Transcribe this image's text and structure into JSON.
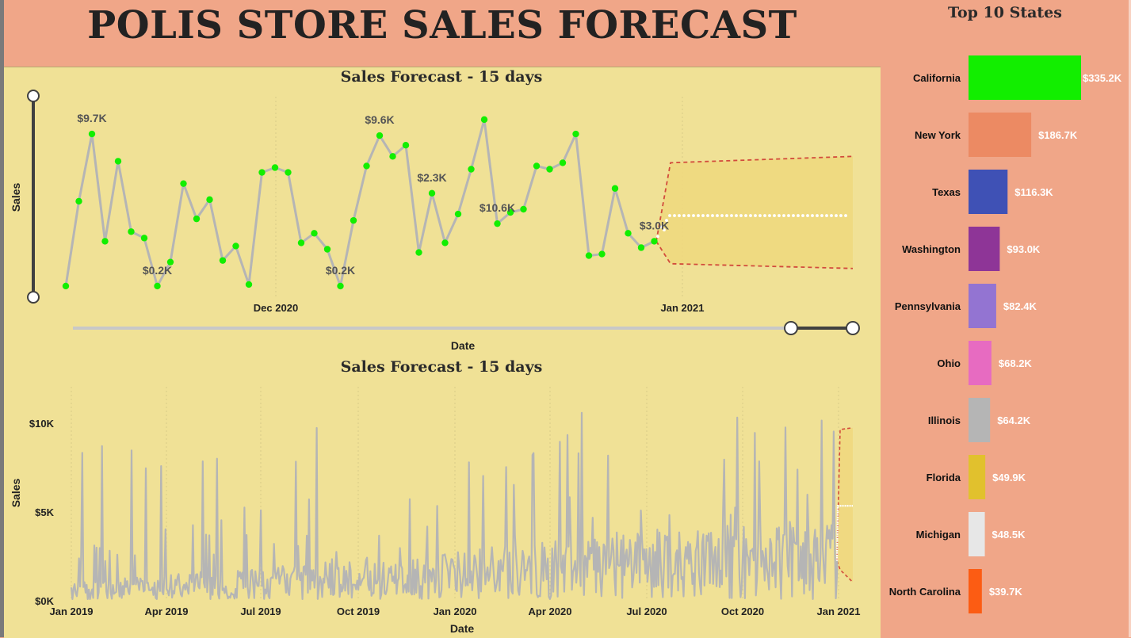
{
  "page": {
    "title": "POLIS STORE SALES FORECAST"
  },
  "colors": {
    "header_bg": "#f0a688",
    "chart_bg": "#f0e196",
    "line": "#b5b5b5",
    "point": "#12ee00",
    "forecast": "#ffffff",
    "band": "#efd87e",
    "band_border": "#d24b3c"
  },
  "chart_data": [
    {
      "type": "line",
      "title": "Sales Forecast - 15 days",
      "xlabel": "Date",
      "ylabel": "Sales",
      "x_ticks": [
        "Dec 2020",
        "Jan 2021"
      ],
      "grid": "vertical dotted",
      "series": [
        {
          "values": [
            0.2,
            5.5,
            9.7,
            3.0,
            8.0,
            3.6,
            3.2,
            0.2,
            1.7,
            6.6,
            4.4,
            5.6,
            1.8,
            2.7,
            0.3,
            7.3,
            7.6,
            7.3,
            2.9,
            3.5,
            2.5,
            0.2,
            4.3,
            7.7,
            9.6,
            8.3,
            9.0,
            2.3,
            6.0,
            2.9,
            4.7,
            7.5,
            10.6,
            4.1,
            4.8,
            5.0,
            7.7,
            7.5,
            7.9,
            9.7,
            2.1,
            2.2,
            6.3,
            3.5,
            2.6,
            3.0
          ]
        }
      ],
      "data_labels": [
        "$9.7K",
        "$0.2K",
        "$9.6K",
        "$0.2K",
        "$10.6K",
        "$2.3K",
        "$3.0K"
      ],
      "forecast": {
        "value": 4.6,
        "upper": 8.3,
        "lower": 1.3,
        "days": 15
      }
    },
    {
      "type": "line",
      "title": "Sales Forecast - 15 days",
      "xlabel": "Date",
      "ylabel": "Sales",
      "y_ticks": [
        "$10K",
        "$5K",
        "$0K"
      ],
      "ylim": [
        0,
        12
      ],
      "x_ticks": [
        "Jan 2019",
        "Apr 2019",
        "Jul 2019",
        "Oct 2019",
        "Jan 2020",
        "Apr 2020",
        "Jul 2020",
        "Oct 2020",
        "Jan 2021"
      ],
      "grid": "vertical dotted",
      "forecast": {
        "value": 5.3,
        "upper": 9.6,
        "lower": 1.0,
        "days": 15
      }
    },
    {
      "type": "bar",
      "title": "Top 10 States",
      "categories": [
        "California",
        "New York",
        "Texas",
        "Washington",
        "Pennsylvania",
        "Ohio",
        "Illinois",
        "Florida",
        "Michigan",
        "North Carolina"
      ],
      "values": [
        335.2,
        186.7,
        116.3,
        93.0,
        82.4,
        68.2,
        64.2,
        49.9,
        48.5,
        39.7
      ],
      "labels": [
        "$335.2K",
        "$186.7K",
        "$116.3K",
        "$93.0K",
        "$82.4K",
        "$68.2K",
        "$64.2K",
        "$49.9K",
        "$48.5K",
        "$39.7K"
      ],
      "bar_colors": [
        "#12ee00",
        "#ec8a63",
        "#3f51b5",
        "#8e3597",
        "#9374d2",
        "#e76bc1",
        "#b5b5b5",
        "#e1c12d",
        "#e7e7e7",
        "#fc5c13"
      ]
    }
  ]
}
